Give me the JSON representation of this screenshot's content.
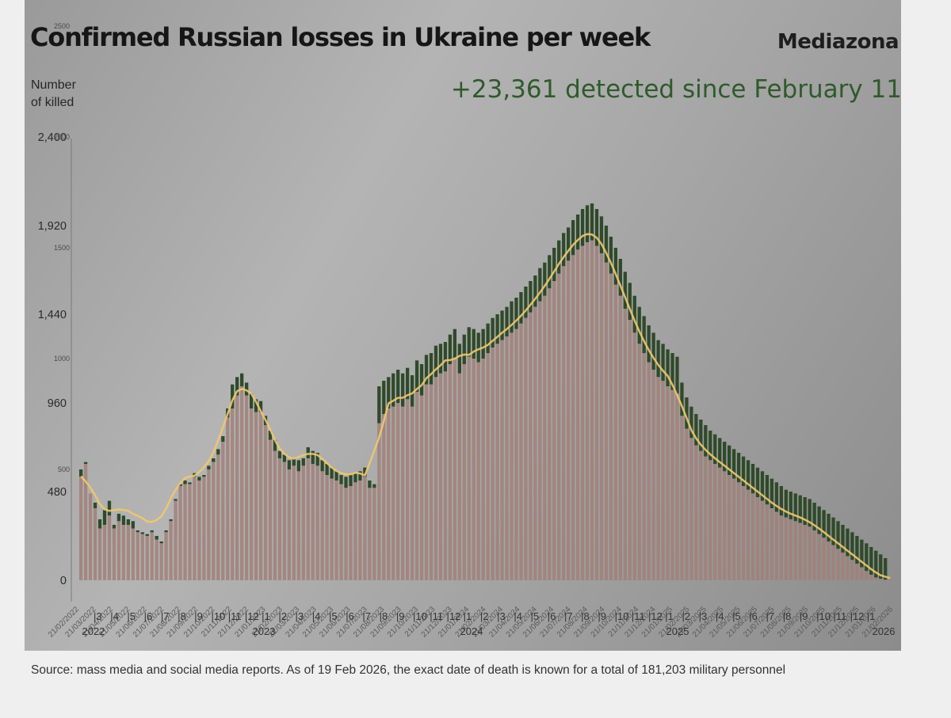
{
  "header": {
    "title": "Confirmed Russian losses in Ukraine per week",
    "brand": "Mediazona",
    "annotation": "+23,361 detected since February 11",
    "ylabel_line1": "Number",
    "ylabel_line2": "of killed"
  },
  "footer": {
    "source": "Source: mass media and social media reports. As of 19 Feb 2026, the exact date of death is known for a total of 181,203 military personnel"
  },
  "chart_data": {
    "type": "bar",
    "ylabel": "Number of killed",
    "ylim": [
      0,
      2400
    ],
    "left_ticks": [
      0,
      480,
      960,
      1440,
      1920,
      2400
    ],
    "left_tick_labels": [
      "0",
      "480",
      "960",
      "1,440",
      "1,920",
      "2,400"
    ],
    "right_ticks": [
      500,
      1000,
      1500,
      2000,
      2500
    ],
    "right_tick_labels": [
      "500",
      "1000",
      "1500",
      "2000",
      "2500"
    ],
    "right_scale_ylim": [
      0,
      2500
    ],
    "year_labels": [
      "2022",
      "2023",
      "2024",
      "2025",
      "2026"
    ],
    "month_labels": [
      "3",
      "4",
      "5",
      "6",
      "7",
      "8",
      "9",
      "10",
      "11",
      "12",
      "1",
      "2",
      "3",
      "4",
      "5",
      "6",
      "7",
      "8",
      "9",
      "10",
      "11",
      "12",
      "1",
      "2",
      "3",
      "4",
      "5",
      "6",
      "7",
      "8",
      "9",
      "10",
      "11",
      "12",
      "1",
      "2",
      "3",
      "4",
      "5",
      "6",
      "7",
      "8",
      "9",
      "10",
      "11",
      "12",
      "1"
    ],
    "date_labels": [
      "21/02/2022",
      "21/03/2022",
      "21/04/2022",
      "21/05/2022",
      "21/06/2022",
      "21/07/2022",
      "21/08/2022",
      "21/09/2022",
      "21/10/2022",
      "21/11/2022",
      "21/12/2022",
      "21/01/2023",
      "21/02/2023",
      "21/03/2023",
      "21/04/2023",
      "21/05/2023",
      "21/06/2023",
      "21/07/2023",
      "21/08/2023",
      "21/09/2023",
      "21/10/2023",
      "21/11/2023",
      "21/12/2023",
      "21/01/2024",
      "21/02/2024",
      "21/03/2024",
      "21/04/2024",
      "21/05/2024",
      "21/06/2024",
      "21/07/2024",
      "21/08/2024",
      "21/09/2024",
      "21/10/2024",
      "21/11/2024",
      "21/12/2024",
      "21/01/2025",
      "21/02/2025",
      "21/03/2025",
      "21/04/2025",
      "21/05/2025",
      "21/06/2025",
      "21/07/2025",
      "21/08/2025",
      "21/09/2025",
      "21/10/2025",
      "21/11/2025",
      "21/12/2025",
      "21/01/2026",
      "21/02/2026"
    ],
    "series": [
      {
        "kind": "bar",
        "values": [
          560,
          630,
          500,
          450,
          370,
          350,
          390,
          360,
          410,
          390,
          370,
          370,
          340,
          330,
          330,
          310,
          280,
          330,
          380,
          430,
          520,
          560,
          560,
          560,
          570,
          560,
          580,
          660,
          690,
          730,
          800,
          920,
          1000,
          1050,
          1100,
          1050,
          980,
          960,
          960,
          880,
          800,
          740,
          700,
          670,
          650,
          660,
          650,
          660,
          720,
          700,
          690,
          650,
          630,
          610,
          590,
          570,
          560,
          570,
          580,
          590,
          610,
          540,
          520,
          910,
          930,
          960,
          990,
          1000,
          980,
          1010,
          960,
          1060,
          1050,
          1100,
          1110,
          1150,
          1170,
          1180,
          1210,
          1240,
          1160,
          1210,
          1250,
          1250,
          1230,
          1250,
          1270,
          1300,
          1320,
          1340,
          1360,
          1380,
          1400,
          1430,
          1460,
          1490,
          1520,
          1560,
          1590,
          1630,
          1670,
          1710,
          1760,
          1790,
          1820,
          1840,
          1870,
          1890,
          1900,
          1870,
          1830,
          1780,
          1720,
          1660,
          1600,
          1530,
          1470,
          1400,
          1340,
          1290,
          1240,
          1200,
          1160,
          1130,
          1100,
          1080,
          1060,
          920,
          850,
          800,
          760,
          730,
          700,
          680,
          660,
          640,
          620,
          600,
          580,
          560,
          540,
          520,
          500,
          480,
          460,
          440,
          420,
          400,
          380,
          370,
          360,
          350,
          340,
          330,
          320,
          300,
          280,
          260,
          240,
          220,
          200,
          180,
          160,
          140,
          120,
          100,
          80,
          60,
          40,
          20,
          10,
          5
        ],
        "display_overrides": [
          560,
          630,
          470,
          390,
          280,
          300,
          350,
          280,
          320,
          300,
          300,
          280,
          260,
          250,
          240,
          260,
          220,
          200,
          260,
          320,
          430,
          510,
          520,
          520,
          560,
          540,
          560,
          600,
          640,
          680,
          750,
          880,
          930,
          1000,
          1050,
          1000,
          930,
          910,
          910,
          840,
          760,
          700,
          660,
          640,
          600,
          620,
          590,
          620,
          660,
          630,
          620,
          590,
          570,
          550,
          540,
          520,
          500,
          510,
          530,
          540,
          560,
          500,
          500,
          850,
          900,
          930,
          940,
          960,
          940,
          980,
          940,
          1020,
          1000,
          1060,
          1060,
          1100,
          1120,
          1130,
          1170,
          1200,
          1120,
          1170,
          1210,
          1200,
          1180,
          1200,
          1230,
          1260,
          1280,
          1300,
          1320,
          1340,
          1360,
          1390,
          1420,
          1450,
          1480,
          1510,
          1540,
          1580,
          1620,
          1660,
          1700,
          1730,
          1760,
          1790,
          1810,
          1830,
          1840,
          1810,
          1770,
          1720,
          1660,
          1600,
          1540,
          1470,
          1410,
          1340,
          1280,
          1230,
          1180,
          1140,
          1100,
          1080,
          1050,
          1030,
          1010,
          890,
          820,
          770,
          730,
          700,
          670,
          650,
          630,
          610,
          590,
          570,
          550,
          530,
          510,
          490,
          470,
          450,
          430,
          410,
          390,
          370,
          350,
          340,
          330,
          320,
          310,
          300,
          290,
          270,
          250,
          230,
          210,
          190,
          170,
          150,
          130,
          110,
          90,
          70,
          50,
          30,
          15,
          8,
          3
        ],
        "total_over": [
          600,
          640,
          450,
          420,
          330,
          380,
          430,
          300,
          360,
          350,
          330,
          320,
          270,
          260,
          250,
          270,
          240,
          210,
          270,
          330,
          440,
          520,
          540,
          530,
          580,
          560,
          570,
          620,
          660,
          710,
          780,
          930,
          1060,
          1100,
          1120,
          1070,
          1010,
          980,
          970,
          890,
          810,
          760,
          700,
          680,
          650,
          660,
          650,
          660,
          720,
          700,
          690,
          650,
          630,
          610,
          590,
          570,
          560,
          570,
          580,
          590,
          610,
          540,
          520,
          1050,
          1080,
          1100,
          1120,
          1140,
          1120,
          1150,
          1110,
          1190,
          1170,
          1220,
          1230,
          1270,
          1280,
          1290,
          1330,
          1360,
          1280,
          1330,
          1370,
          1360,
          1340,
          1360,
          1390,
          1420,
          1440,
          1460,
          1480,
          1510,
          1530,
          1560,
          1590,
          1620,
          1650,
          1690,
          1720,
          1760,
          1800,
          1840,
          1880,
          1910,
          1950,
          1980,
          2010,
          2030,
          2040,
          2010,
          1970,
          1920,
          1860,
          1800,
          1740,
          1670,
          1610,
          1540,
          1480,
          1430,
          1380,
          1340,
          1300,
          1280,
          1250,
          1230,
          1210,
          1070,
          990,
          940,
          900,
          870,
          840,
          810,
          790,
          770,
          750,
          730,
          710,
          690,
          670,
          650,
          630,
          610,
          590,
          570,
          550,
          530,
          510,
          490,
          480,
          470,
          460,
          450,
          440,
          420,
          400,
          380,
          360,
          340,
          320,
          300,
          280,
          260,
          240,
          220,
          200,
          180,
          160,
          140,
          120
        ]
      }
    ]
  }
}
